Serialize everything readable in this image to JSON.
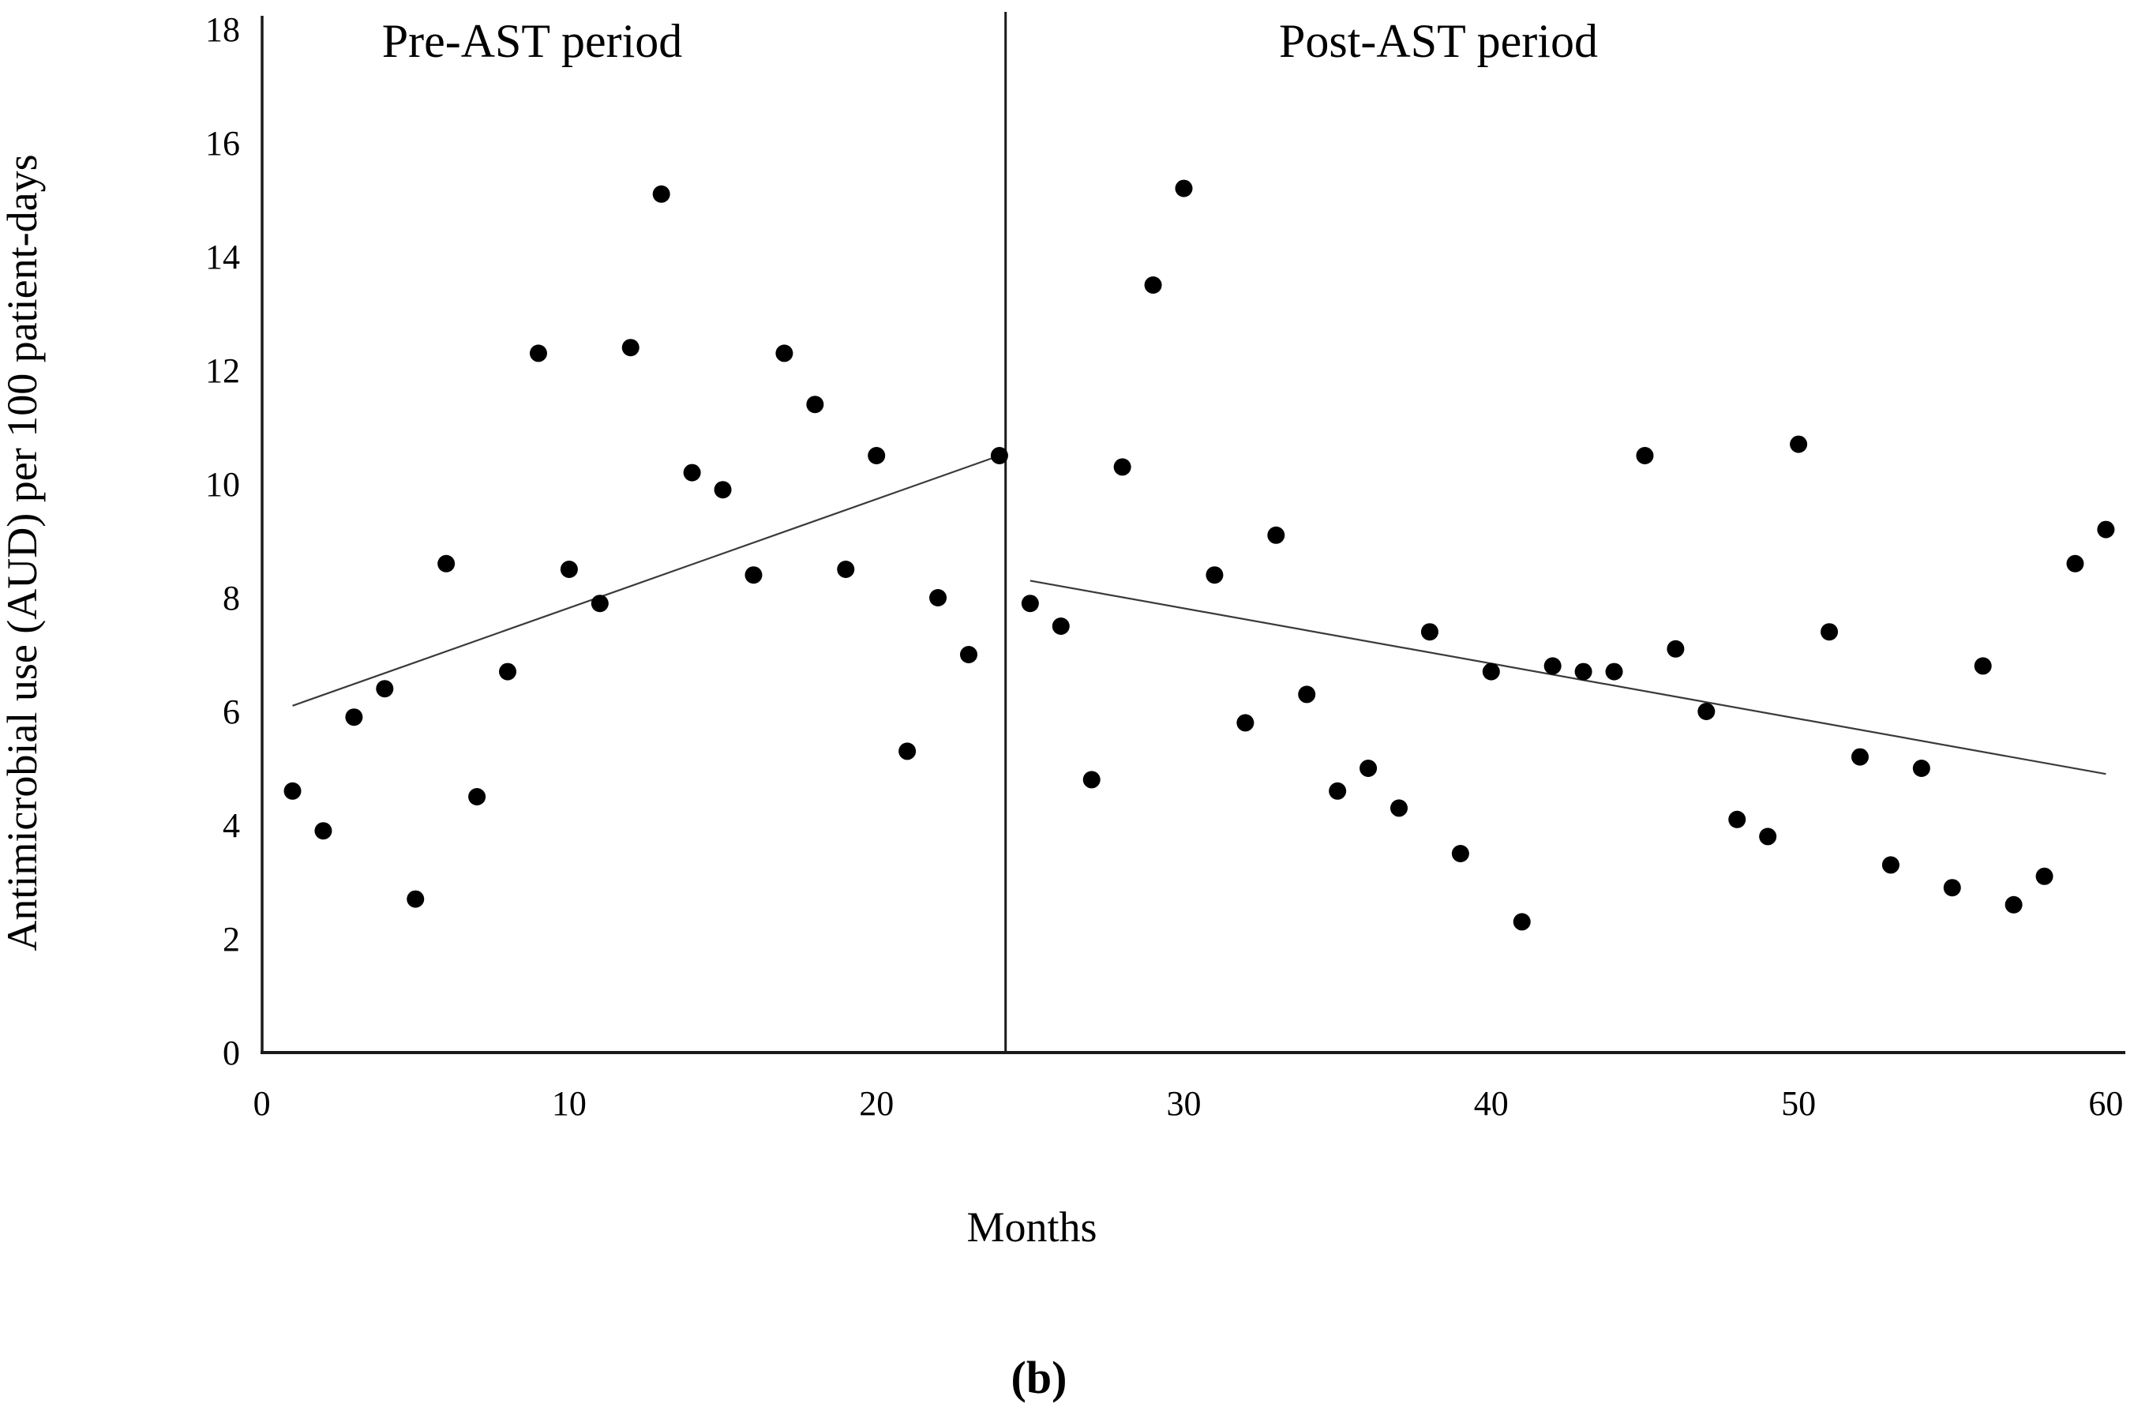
{
  "figure": {
    "caption": "(b)",
    "xlabel": "Months",
    "ylabel": "Antimicrobial use (AUD) per 100 patient-days",
    "pre_period_title": "Pre-AST period",
    "post_period_title": "Post-AST period"
  },
  "chart_data": {
    "type": "scatter",
    "title": "",
    "xlabel": "Months",
    "ylabel": "Antimicrobial use (AUD) per 100 patient-days",
    "xlim": [
      0,
      61
    ],
    "ylim": [
      0,
      18
    ],
    "x_ticks": [
      0,
      10,
      20,
      30,
      40,
      50,
      60
    ],
    "y_ticks": [
      0,
      2,
      4,
      6,
      8,
      10,
      12,
      14,
      16,
      18
    ],
    "grid": false,
    "legend_position": "none",
    "separator_x": 24.2,
    "point_color": "#000000",
    "trend_color": "#3a3a3a",
    "axis_color": "#1a1a1a",
    "series": [
      {
        "name": "Pre-AST period",
        "x": [
          1,
          2,
          3,
          4,
          5,
          6,
          7,
          8,
          9,
          10,
          11,
          12,
          13,
          14,
          15,
          16,
          17,
          18,
          19,
          20,
          21,
          22,
          23,
          24
        ],
        "y": [
          4.6,
          3.9,
          5.9,
          6.4,
          2.7,
          8.6,
          4.5,
          6.7,
          12.3,
          8.5,
          7.9,
          12.4,
          15.1,
          10.2,
          9.9,
          8.4,
          12.3,
          11.4,
          8.5,
          10.5,
          5.3,
          8.0,
          7.0,
          10.5
        ]
      },
      {
        "name": "Post-AST period",
        "x": [
          25,
          26,
          27,
          28,
          29,
          30,
          31,
          32,
          33,
          34,
          35,
          36,
          37,
          38,
          39,
          40,
          41,
          42,
          43,
          44,
          45,
          46,
          47,
          48,
          49,
          50,
          51,
          52,
          53,
          54,
          55,
          56,
          57,
          58,
          59,
          60
        ],
        "y": [
          7.9,
          7.5,
          4.8,
          10.3,
          13.5,
          15.2,
          8.4,
          5.8,
          9.1,
          6.3,
          4.6,
          5.0,
          4.3,
          7.4,
          3.5,
          6.7,
          2.3,
          6.8,
          6.7,
          6.7,
          10.5,
          7.1,
          6.0,
          4.1,
          3.8,
          10.7,
          7.4,
          5.2,
          3.3,
          5.0,
          2.9,
          6.8,
          2.6,
          3.1,
          8.6,
          9.2
        ]
      }
    ],
    "trend_lines": [
      {
        "name": "pre-ast-trend",
        "x1": 1,
        "y1": 6.1,
        "x2": 24,
        "y2": 10.5
      },
      {
        "name": "post-ast-trend",
        "x1": 25,
        "y1": 8.3,
        "x2": 60,
        "y2": 4.9
      }
    ]
  }
}
